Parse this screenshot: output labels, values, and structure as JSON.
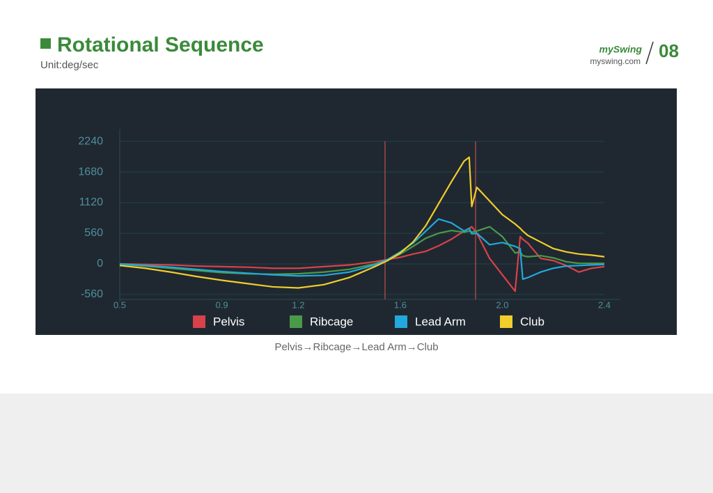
{
  "header": {
    "title": "Rotational Sequence",
    "unit": "Unit:deg/sec",
    "brand": "mySwing",
    "site": "myswing.com",
    "page": "08"
  },
  "caption": "Pelvis→Ribcage→Lead Arm→Club",
  "chart_data": {
    "type": "line",
    "x": [
      0.5,
      0.6,
      0.7,
      0.8,
      0.9,
      1.0,
      1.1,
      1.2,
      1.3,
      1.4,
      1.5,
      1.55,
      1.6,
      1.65,
      1.7,
      1.75,
      1.8,
      1.85,
      1.87,
      1.88,
      1.9,
      1.95,
      2.0,
      2.05,
      2.07,
      2.08,
      2.1,
      2.15,
      2.2,
      2.25,
      2.3,
      2.35,
      2.4
    ],
    "series": [
      {
        "name": "Pelvis",
        "color": "#d9414b",
        "values": [
          0,
          -10,
          -20,
          -40,
          -50,
          -60,
          -80,
          -80,
          -50,
          -20,
          40,
          80,
          120,
          180,
          230,
          330,
          450,
          600,
          650,
          680,
          560,
          100,
          -200,
          -500,
          500,
          450,
          380,
          100,
          60,
          -30,
          -150,
          -80,
          -50
        ]
      },
      {
        "name": "Ribcage",
        "color": "#4a9a4a",
        "values": [
          -10,
          -40,
          -80,
          -120,
          -160,
          -180,
          -190,
          -180,
          -150,
          -100,
          0,
          70,
          180,
          320,
          470,
          560,
          610,
          580,
          600,
          580,
          600,
          680,
          500,
          200,
          220,
          150,
          130,
          150,
          110,
          40,
          10,
          10,
          10
        ]
      },
      {
        "name": "Lead Arm",
        "color": "#22a8dc",
        "values": [
          0,
          -30,
          -60,
          -100,
          -140,
          -170,
          -200,
          -220,
          -210,
          -150,
          -20,
          80,
          220,
          380,
          600,
          820,
          750,
          600,
          650,
          550,
          560,
          350,
          390,
          320,
          280,
          -280,
          -250,
          -150,
          -80,
          -40,
          -30,
          -20,
          -10
        ]
      },
      {
        "name": "Club",
        "color": "#f2cd2c",
        "values": [
          -30,
          -80,
          -150,
          -230,
          -300,
          -360,
          -420,
          -440,
          -380,
          -250,
          -50,
          60,
          200,
          400,
          700,
          1100,
          1500,
          1880,
          1950,
          1050,
          1400,
          1150,
          900,
          730,
          650,
          600,
          520,
          400,
          280,
          220,
          180,
          160,
          130
        ]
      }
    ],
    "markers": [
      1.54,
      1.895
    ],
    "marker_color": "#c0504d",
    "xlim": [
      0.5,
      2.46
    ],
    "ylim": [
      -650,
      2470
    ],
    "xticks": [
      0.5,
      0.9,
      1.2,
      1.6,
      {
        "value": 2,
        "label": "2.0"
      },
      2.4
    ],
    "yticks": [
      -560,
      0,
      560,
      1120,
      1680,
      2240
    ],
    "grid": true,
    "legend": "bottom"
  }
}
